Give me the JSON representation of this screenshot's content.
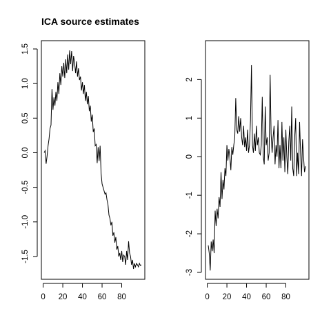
{
  "chart_data": [
    {
      "type": "line",
      "title": "ICA source estimates",
      "xlabel": "",
      "ylabel": "",
      "xlim": [
        1,
        100
      ],
      "ylim": [
        -1.7,
        1.5
      ],
      "xticks": [
        0,
        20,
        40,
        60,
        80
      ],
      "xtick_labels": [
        "0",
        "20",
        "40",
        "60",
        "80"
      ],
      "yticks": [
        -1.5,
        -1.0,
        -0.5,
        0.0,
        0.5,
        1.0,
        1.5
      ],
      "ytick_labels": [
        "-1.5",
        "-1.0",
        "-0.5",
        "0.0",
        "0.5",
        "1.0",
        "1.5"
      ],
      "grid": false,
      "series": [
        {
          "x": [
            1,
            2,
            3,
            4,
            5,
            6,
            7,
            8,
            9,
            10,
            11,
            12,
            13,
            14,
            15,
            16,
            17,
            18,
            19,
            20,
            21,
            22,
            23,
            24,
            25,
            26,
            27,
            28,
            29,
            30,
            31,
            32,
            33,
            34,
            35,
            36,
            37,
            38,
            39,
            40,
            41,
            42,
            43,
            44,
            45,
            46,
            47,
            48,
            49,
            50,
            51,
            52,
            53,
            54,
            55,
            56,
            57,
            58,
            59,
            60,
            61,
            62,
            63,
            64,
            65,
            66,
            67,
            68,
            69,
            70,
            71,
            72,
            73,
            74,
            75,
            76,
            77,
            78,
            79,
            80,
            81,
            82,
            83,
            84,
            85,
            86,
            87,
            88,
            89,
            90,
            91,
            92,
            93,
            94,
            95,
            96,
            97,
            98,
            99,
            100
          ],
          "y": [
            0.0,
            0.03,
            -0.16,
            -0.05,
            0.1,
            0.2,
            0.35,
            0.4,
            0.92,
            0.62,
            0.8,
            0.68,
            0.88,
            0.75,
            1.02,
            0.85,
            1.15,
            0.98,
            1.25,
            1.1,
            1.3,
            1.08,
            1.35,
            1.15,
            1.42,
            1.2,
            1.48,
            1.28,
            1.47,
            1.18,
            1.4,
            1.3,
            1.15,
            1.32,
            1.1,
            1.22,
            1.05,
            1.1,
            0.9,
            1.02,
            0.85,
            0.98,
            0.75,
            0.88,
            0.7,
            0.82,
            0.6,
            0.68,
            0.45,
            0.55,
            0.3,
            0.35,
            0.1,
            0.12,
            -0.15,
            0.08,
            -0.12,
            0.1,
            -0.3,
            -0.45,
            -0.5,
            -0.55,
            -0.6,
            -0.58,
            -0.68,
            -0.75,
            -0.9,
            -0.95,
            -1.05,
            -1.0,
            -1.2,
            -1.15,
            -1.3,
            -1.22,
            -1.4,
            -1.35,
            -1.5,
            -1.45,
            -1.55,
            -1.42,
            -1.58,
            -1.48,
            -1.5,
            -1.62,
            -1.42,
            -1.55,
            -1.28,
            -1.45,
            -1.5,
            -1.62,
            -1.55,
            -1.68,
            -1.6,
            -1.65,
            -1.6,
            -1.62,
            -1.65,
            -1.6,
            -1.63,
            -1.62
          ]
        }
      ]
    },
    {
      "type": "line",
      "title": "",
      "xlabel": "",
      "ylabel": "",
      "xlim": [
        1,
        100
      ],
      "ylim": [
        -3,
        2.4
      ],
      "xticks": [
        0,
        20,
        40,
        60,
        80
      ],
      "xtick_labels": [
        "0",
        "20",
        "40",
        "60",
        "80"
      ],
      "yticks": [
        -3,
        -2,
        -1,
        0,
        1,
        2
      ],
      "ytick_labels": [
        "-3",
        "-2",
        "-1",
        "0",
        "1",
        "2"
      ],
      "grid": false,
      "series": [
        {
          "x": [
            1,
            2,
            3,
            4,
            5,
            6,
            7,
            8,
            9,
            10,
            11,
            12,
            13,
            14,
            15,
            16,
            17,
            18,
            19,
            20,
            21,
            22,
            23,
            24,
            25,
            26,
            27,
            28,
            29,
            30,
            31,
            32,
            33,
            34,
            35,
            36,
            37,
            38,
            39,
            40,
            41,
            42,
            43,
            44,
            45,
            46,
            47,
            48,
            49,
            50,
            51,
            52,
            53,
            54,
            55,
            56,
            57,
            58,
            59,
            60,
            61,
            62,
            63,
            64,
            65,
            66,
            67,
            68,
            69,
            70,
            71,
            72,
            73,
            74,
            75,
            76,
            77,
            78,
            79,
            80,
            81,
            82,
            83,
            84,
            85,
            86,
            87,
            88,
            89,
            90,
            91,
            92,
            93,
            94,
            95,
            96,
            97,
            98,
            99,
            100
          ],
          "y": [
            -2.3,
            -2.5,
            -2.95,
            -2.2,
            -2.45,
            -2.15,
            -2.5,
            -1.4,
            -1.8,
            -1.35,
            -1.6,
            -1.05,
            -1.3,
            -0.4,
            -1.1,
            -0.6,
            -0.85,
            -0.3,
            -0.5,
            0.3,
            -0.1,
            0.2,
            0.0,
            -0.35,
            0.25,
            0.05,
            0.3,
            0.5,
            1.52,
            0.7,
            0.6,
            1.05,
            0.65,
            1.0,
            0.5,
            0.3,
            0.8,
            0.25,
            0.5,
            0.15,
            0.7,
            0.1,
            0.3,
            0.95,
            2.38,
            0.3,
            0.1,
            0.6,
            0.15,
            0.8,
            0.3,
            0.5,
            0.1,
            0.05,
            0.3,
            1.55,
            0.0,
            -0.2,
            1.3,
            0.3,
            0.5,
            -0.1,
            0.1,
            2.12,
            0.6,
            0.1,
            0.5,
            0.8,
            -0.2,
            0.3,
            0.0,
            0.95,
            -0.3,
            0.3,
            -0.3,
            0.9,
            -0.1,
            0.5,
            -0.4,
            0.7,
            0.0,
            -0.45,
            0.4,
            0.8,
            -0.1,
            1.3,
            -0.3,
            -0.5,
            0.5,
            1.0,
            -0.5,
            0.1,
            -0.45,
            0.9,
            0.1,
            -0.5,
            0.45,
            0.0,
            -0.4,
            -0.25
          ]
        }
      ]
    }
  ]
}
